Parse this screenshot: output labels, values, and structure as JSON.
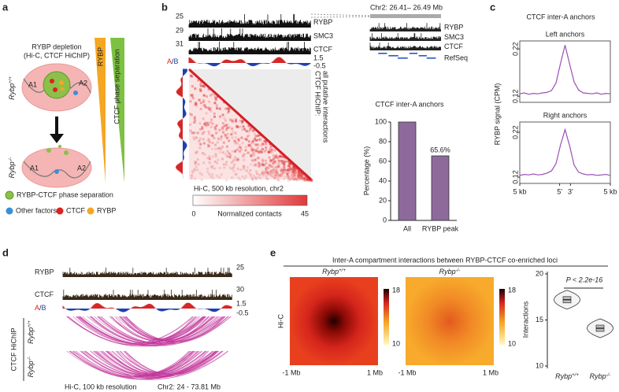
{
  "panels": {
    "a": {
      "label": "a",
      "title": "RYBP depletion",
      "subtitle": "(Hi-C, CTCF HiChIP)",
      "wt": {
        "base": "Rybp",
        "sup": "+/+"
      },
      "ko": {
        "base": "Rybp",
        "sup": "-/-"
      },
      "top_regions": [
        "A1",
        "A2"
      ],
      "bottom_regions": [
        "A1",
        "A2"
      ],
      "gradient_rybp": "RYBP",
      "gradient_ctcf": "CTCF phase separation",
      "legend": [
        "RYBP-CTCF phase separation",
        "Other factors",
        "CTCF",
        "RYBP"
      ]
    },
    "b": {
      "label": "b",
      "tracks": [
        {
          "name": "RYBP",
          "max": 25
        },
        {
          "name": "SMC3",
          "max": 29
        },
        {
          "name": "CTCF",
          "max": 31
        }
      ],
      "ab": {
        "a": "A",
        "sep": "/",
        "b": "B",
        "max": 1.5,
        "min": -0.5
      },
      "side_title": "CTCF HiChIP:",
      "side_subtitle": "all putative interactions",
      "caption": "Hi-C, 500 kb resolution, chr2",
      "colorbar": {
        "min": 0,
        "label": "Normalized contacts",
        "max": 45
      },
      "zoom": {
        "region": "Chr2: 26.41– 26.49 Mb",
        "tracks": [
          "RYBP",
          "SMC3",
          "CTCF",
          "RefSeq"
        ]
      }
    },
    "c": {
      "label": "c",
      "title": "CTCF inter-A anchors",
      "ylabel": "RYBP signal (CPM)"
    },
    "d": {
      "label": "d",
      "tracks": [
        {
          "name": "RYBP",
          "max": 25
        },
        {
          "name": "CTCF",
          "max": 30
        }
      ],
      "ab": {
        "a": "A",
        "sep": "/",
        "b": "B",
        "max": 1.5,
        "min": -0.5
      },
      "group": "CTCF HiChIP",
      "wt": {
        "base": "Rybp",
        "sup": "+/+"
      },
      "ko": {
        "base": "Rybp",
        "sup": "-/-"
      },
      "caption": "Hi-C, 100 kb resolution",
      "region": "Chr2: 24 - 73.81 Mb"
    },
    "e": {
      "label": "e",
      "title": "Inter-A compartment interactions between RYBP-CTCF co-enriched loci",
      "wt": {
        "base": "Rybp",
        "sup": "+/+"
      },
      "ko": {
        "base": "Rybp",
        "sup": "-/-"
      },
      "ylabel": "Hi-C",
      "colorbar": {
        "max": 18,
        "min": 10
      },
      "xlabels": [
        "-1 Mb",
        "1 Mb"
      ]
    }
  },
  "chart_data": [
    {
      "type": "bar",
      "title": "CTCF inter-A anchors",
      "ylabel": "Percentage (%)",
      "categories": [
        "All",
        "RYBP peak"
      ],
      "values": [
        100,
        65.6
      ],
      "value_labels": [
        null,
        "65.6%"
      ],
      "color": "#8e6a9c",
      "ylim": [
        0,
        100
      ],
      "yticks": [
        0,
        20,
        40,
        60,
        80,
        100
      ]
    },
    {
      "type": "line",
      "title": "Left anchors",
      "x": [
        -5,
        -4.5,
        -4,
        -3.5,
        -3,
        -2.5,
        -2,
        -1.5,
        -1,
        -0.5,
        0,
        0.5,
        1,
        1.5,
        2,
        2.5,
        3,
        3.5,
        4,
        4.5,
        5
      ],
      "values": [
        0.125,
        0.127,
        0.124,
        0.126,
        0.125,
        0.127,
        0.128,
        0.132,
        0.148,
        0.19,
        0.228,
        0.188,
        0.15,
        0.133,
        0.127,
        0.126,
        0.125,
        0.127,
        0.124,
        0.126,
        0.125
      ],
      "color": "#9b4fb4",
      "xlim": [
        -5,
        5
      ],
      "ylim": [
        0.107,
        0.237
      ],
      "yticks": [
        0.22,
        0.12
      ]
    },
    {
      "type": "line",
      "title": "Right anchors",
      "x": [
        -5,
        -4.5,
        -4,
        -3.5,
        -3,
        -2.5,
        -2,
        -1.5,
        -1,
        -0.5,
        0,
        0.5,
        1,
        1.5,
        2,
        2.5,
        3,
        3.5,
        4,
        4.5,
        5
      ],
      "values": [
        0.124,
        0.126,
        0.125,
        0.127,
        0.125,
        0.126,
        0.129,
        0.134,
        0.15,
        0.192,
        0.226,
        0.19,
        0.147,
        0.131,
        0.127,
        0.125,
        0.126,
        0.124,
        0.125,
        0.126,
        0.124
      ],
      "color": "#9b4fb4",
      "xlim": [
        -5,
        5
      ],
      "ylim": [
        0.106,
        0.243
      ],
      "yticks": [
        0.22,
        0.12
      ],
      "xticks": [
        {
          "value": -5,
          "label": "5 kb"
        },
        {
          "value": -0.6,
          "label": "5'"
        },
        {
          "value": 0.6,
          "label": "3'"
        },
        {
          "value": 5,
          "label": "5 kb"
        }
      ]
    },
    {
      "type": "violin",
      "title": "P < 2.2e-16",
      "ylabel": "Interactions",
      "categories": [
        {
          "base": "Rybp",
          "sup": "+/+"
        },
        {
          "base": "Rybp",
          "sup": "-/-"
        }
      ],
      "values": [
        17.2,
        14.1
      ],
      "ylim": [
        10,
        20
      ],
      "yticks": [
        10,
        15,
        20
      ]
    }
  ]
}
